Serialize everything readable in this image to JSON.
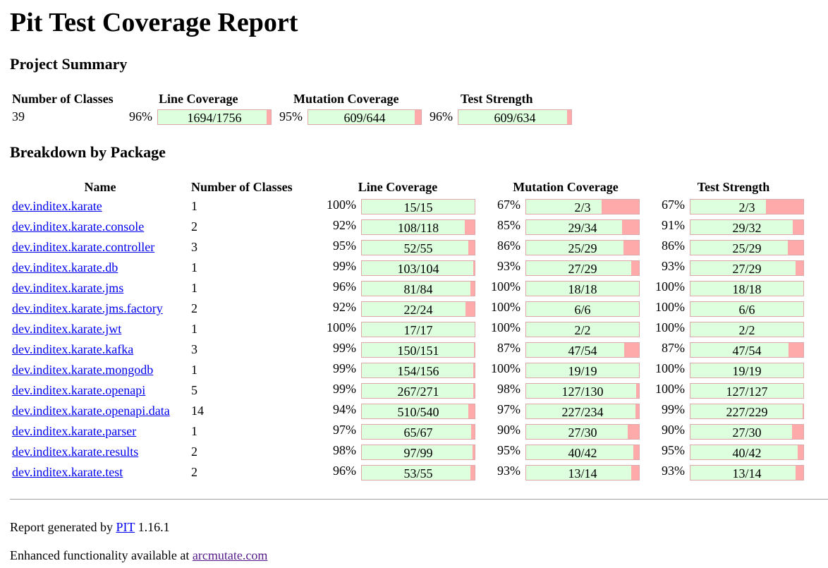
{
  "title": "Pit Test Coverage Report",
  "project_summary": {
    "heading": "Project Summary",
    "headers": {
      "classes": "Number of Classes",
      "line": "Line Coverage",
      "mutation": "Mutation Coverage",
      "strength": "Test Strength"
    },
    "classes": "39",
    "line": {
      "pct": "96%",
      "label": "1694/1756",
      "fraction": 0.9647
    },
    "mutation": {
      "pct": "95%",
      "label": "609/644",
      "fraction": 0.9457
    },
    "strength": {
      "pct": "96%",
      "label": "609/634",
      "fraction": 0.9606
    }
  },
  "breakdown": {
    "heading": "Breakdown by Package",
    "headers": {
      "name": "Name",
      "classes": "Number of Classes",
      "line": "Line Coverage",
      "mutation": "Mutation Coverage",
      "strength": "Test Strength"
    },
    "packages": [
      {
        "name": "dev.inditex.karate",
        "classes": "1",
        "line_pct": "100%",
        "line": "15/15",
        "line_f": 1.0,
        "mut_pct": "67%",
        "mut": "2/3",
        "mut_f": 0.667,
        "str_pct": "67%",
        "str": "2/3",
        "str_f": 0.667
      },
      {
        "name": "dev.inditex.karate.console",
        "classes": "2",
        "line_pct": "92%",
        "line": "108/118",
        "line_f": 0.915,
        "mut_pct": "85%",
        "mut": "29/34",
        "mut_f": 0.853,
        "str_pct": "91%",
        "str": "29/32",
        "str_f": 0.906
      },
      {
        "name": "dev.inditex.karate.controller",
        "classes": "3",
        "line_pct": "95%",
        "line": "52/55",
        "line_f": 0.945,
        "mut_pct": "86%",
        "mut": "25/29",
        "mut_f": 0.862,
        "str_pct": "86%",
        "str": "25/29",
        "str_f": 0.862
      },
      {
        "name": "dev.inditex.karate.db",
        "classes": "1",
        "line_pct": "99%",
        "line": "103/104",
        "line_f": 0.99,
        "mut_pct": "93%",
        "mut": "27/29",
        "mut_f": 0.931,
        "str_pct": "93%",
        "str": "27/29",
        "str_f": 0.931
      },
      {
        "name": "dev.inditex.karate.jms",
        "classes": "1",
        "line_pct": "96%",
        "line": "81/84",
        "line_f": 0.964,
        "mut_pct": "100%",
        "mut": "18/18",
        "mut_f": 1.0,
        "str_pct": "100%",
        "str": "18/18",
        "str_f": 1.0
      },
      {
        "name": "dev.inditex.karate.jms.factory",
        "classes": "2",
        "line_pct": "92%",
        "line": "22/24",
        "line_f": 0.917,
        "mut_pct": "100%",
        "mut": "6/6",
        "mut_f": 1.0,
        "str_pct": "100%",
        "str": "6/6",
        "str_f": 1.0
      },
      {
        "name": "dev.inditex.karate.jwt",
        "classes": "1",
        "line_pct": "100%",
        "line": "17/17",
        "line_f": 1.0,
        "mut_pct": "100%",
        "mut": "2/2",
        "mut_f": 1.0,
        "str_pct": "100%",
        "str": "2/2",
        "str_f": 1.0
      },
      {
        "name": "dev.inditex.karate.kafka",
        "classes": "3",
        "line_pct": "99%",
        "line": "150/151",
        "line_f": 0.993,
        "mut_pct": "87%",
        "mut": "47/54",
        "mut_f": 0.87,
        "str_pct": "87%",
        "str": "47/54",
        "str_f": 0.87
      },
      {
        "name": "dev.inditex.karate.mongodb",
        "classes": "1",
        "line_pct": "99%",
        "line": "154/156",
        "line_f": 0.987,
        "mut_pct": "100%",
        "mut": "19/19",
        "mut_f": 1.0,
        "str_pct": "100%",
        "str": "19/19",
        "str_f": 1.0
      },
      {
        "name": "dev.inditex.karate.openapi",
        "classes": "5",
        "line_pct": "99%",
        "line": "267/271",
        "line_f": 0.985,
        "mut_pct": "98%",
        "mut": "127/130",
        "mut_f": 0.977,
        "str_pct": "100%",
        "str": "127/127",
        "str_f": 1.0
      },
      {
        "name": "dev.inditex.karate.openapi.data",
        "classes": "14",
        "line_pct": "94%",
        "line": "510/540",
        "line_f": 0.944,
        "mut_pct": "97%",
        "mut": "227/234",
        "mut_f": 0.97,
        "str_pct": "99%",
        "str": "227/229",
        "str_f": 0.991
      },
      {
        "name": "dev.inditex.karate.parser",
        "classes": "1",
        "line_pct": "97%",
        "line": "65/67",
        "line_f": 0.97,
        "mut_pct": "90%",
        "mut": "27/30",
        "mut_f": 0.9,
        "str_pct": "90%",
        "str": "27/30",
        "str_f": 0.9
      },
      {
        "name": "dev.inditex.karate.results",
        "classes": "2",
        "line_pct": "98%",
        "line": "97/99",
        "line_f": 0.98,
        "mut_pct": "95%",
        "mut": "40/42",
        "mut_f": 0.952,
        "str_pct": "95%",
        "str": "40/42",
        "str_f": 0.952
      },
      {
        "name": "dev.inditex.karate.test",
        "classes": "2",
        "line_pct": "96%",
        "line": "53/55",
        "line_f": 0.964,
        "mut_pct": "93%",
        "mut": "13/14",
        "mut_f": 0.929,
        "str_pct": "93%",
        "str": "13/14",
        "str_f": 0.929
      }
    ]
  },
  "footer": {
    "generated_prefix": "Report generated by",
    "pit_link": "PIT",
    "version": "1.16.1",
    "enhanced_prefix": "Enhanced functionality available at",
    "arcmutate_link": "arcmutate.com"
  },
  "colors": {
    "covered": "#ddffdd",
    "uncovered": "#ffaaaa",
    "link": "#0000ee",
    "visited_link": "#551a8b"
  }
}
